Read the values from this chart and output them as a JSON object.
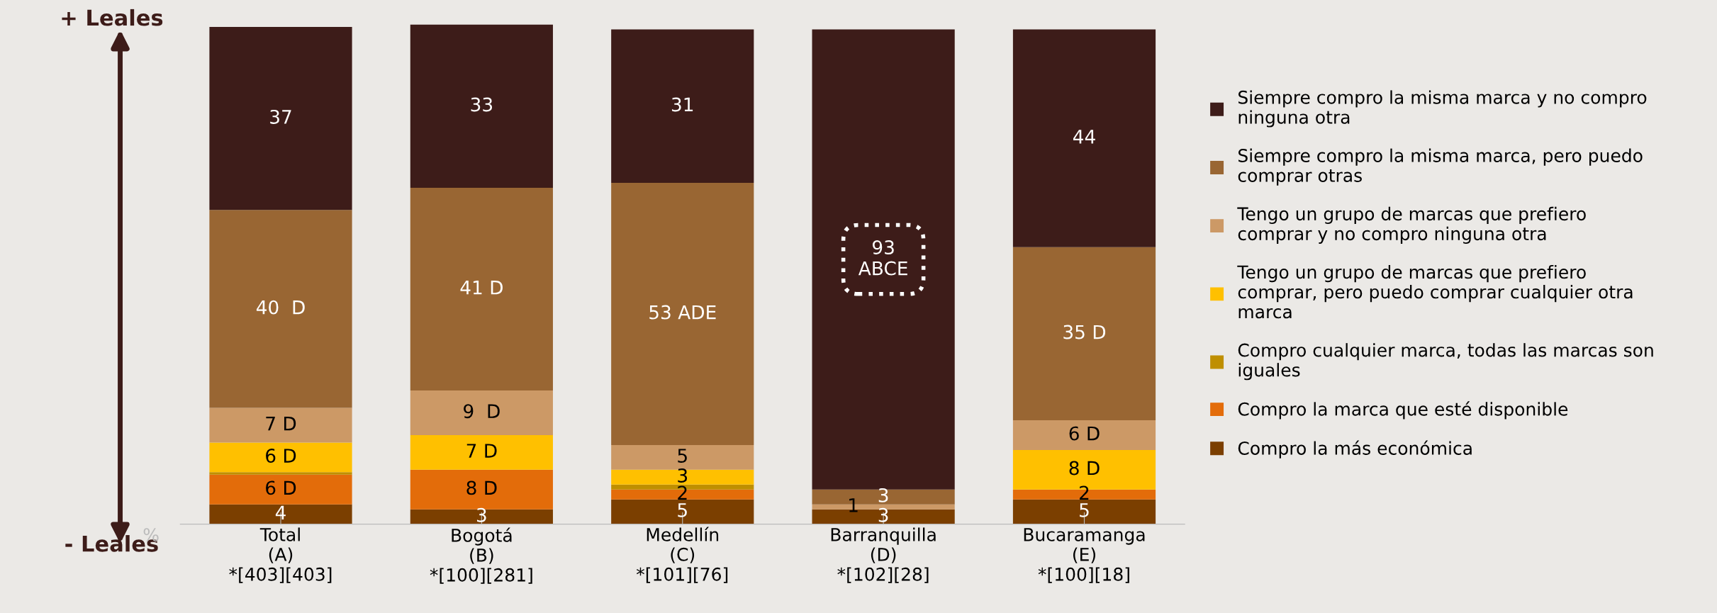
{
  "chart_data": {
    "type": "bar",
    "stacked": true,
    "categories": [
      "Total\n(A)\n*[403][403]",
      "Bogotá\n(B)\n*[100][281]",
      "Medellín\n(C)\n*[101][76]",
      "Barranquilla\n(D)\n*[102][28]",
      "Bucaramanga\n(E)\n*[100][18]"
    ],
    "ylim": [
      0,
      101
    ],
    "tick_labels": "x",
    "grid": false,
    "legend": "right",
    "series": [
      {
        "name": "Compro la más económica",
        "color": "#7b3f00",
        "values": [
          4,
          3,
          5,
          3,
          5
        ],
        "value_labels": [
          "4",
          "3",
          "5",
          "3",
          "5"
        ]
      },
      {
        "name": "Compro la marca que esté disponible",
        "color": "#e36c0a",
        "values": [
          6,
          8,
          2,
          0,
          2
        ],
        "value_labels": [
          "6 D",
          "8 D",
          "2",
          null,
          "2"
        ]
      },
      {
        "name": "Compro cualquier marca, todas las marcas son\niguales",
        "color": "#bf8f00",
        "values": [
          0.5,
          0,
          1,
          0,
          0
        ],
        "value_labels": [
          null,
          null,
          null,
          null,
          null
        ]
      },
      {
        "name": "Tengo un grupo de marcas que prefiero\ncomprar, pero puedo comprar cualquier otra\nmarca",
        "color": "#ffc000",
        "values": [
          6,
          7,
          3,
          0,
          8
        ],
        "value_labels": [
          "6 D",
          "7 D",
          "3",
          null,
          "8 D"
        ]
      },
      {
        "name": "Tengo un grupo de marcas que prefiero\ncomprar y no compro ninguna otra",
        "color": "#cc9966",
        "values": [
          7,
          9,
          5,
          1,
          6
        ],
        "value_labels": [
          "7 D",
          "9  D",
          "5",
          "1",
          "6 D"
        ]
      },
      {
        "name": "Siempre compro la misma marca, pero puedo\ncomprar otras",
        "color": "#996633",
        "values": [
          40,
          41,
          53,
          3,
          35
        ],
        "value_labels": [
          "40  D",
          "41 D",
          "53 ADE",
          "3",
          "35 D"
        ]
      },
      {
        "name": "Siempre compro la misma marca y no compro\nninguna otra",
        "color": "#3d1c19",
        "values": [
          37,
          33,
          31,
          93,
          44
        ],
        "value_labels": [
          "37",
          "33",
          "31",
          "93\nABCE",
          "44"
        ]
      }
    ],
    "annotations": [
      "+ Leales",
      "- Leales",
      "%"
    ]
  }
}
